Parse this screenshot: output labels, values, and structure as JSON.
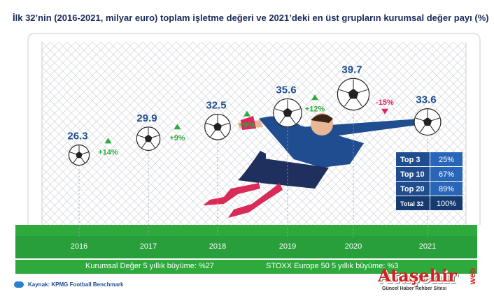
{
  "title": "İlk 32’nin (2016-2021, milyar euro) toplam işletme değeri ve 2021’deki en üst grupların kurumsal değer payı (%)",
  "chart_data": {
    "type": "scatter",
    "categories": [
      "2016",
      "2017",
      "2018",
      "2019",
      "2020",
      "2021"
    ],
    "values": [
      26.3,
      29.9,
      32.5,
      35.6,
      39.7,
      33.6
    ],
    "value_labels": [
      "26.3",
      "29.9",
      "32.5",
      "35.6",
      "39.7",
      "33.6"
    ],
    "growth": [
      {
        "label": "+14%",
        "direction": "up"
      },
      {
        "label": "+9%",
        "direction": "up"
      },
      {
        "label": "+9%",
        "direction": "up"
      },
      {
        "label": "+12%",
        "direction": "up"
      },
      {
        "label": "-15%",
        "direction": "down"
      }
    ],
    "colors": {
      "value": "#1f4d8f",
      "up": "#2eaa3c",
      "down": "#e0245e",
      "grass": "#2eaa3c"
    },
    "ylim": [
      22,
      42
    ],
    "table": {
      "rows": [
        {
          "label": "Top 3",
          "value": "25%"
        },
        {
          "label": "Top 10",
          "value": "67%"
        },
        {
          "label": "Top 20",
          "value": "89%"
        },
        {
          "label": "Total 32",
          "value": "100%"
        }
      ],
      "colors": {
        "header": "#1f4d8f",
        "cell": "#2a66b8",
        "total": "#163b70"
      }
    }
  },
  "footer": {
    "left": "Kurumsal Değer 5 yıllık büyüme: %27",
    "right": "STOXX Europe 50 5 yıllık büyüme: %3"
  },
  "source": "Kaynak: KPMG Football Benchmark",
  "logo": {
    "main": "Ataşehir",
    "sub": "Güncel Haber Rehber Sitesi",
    "side": "web"
  }
}
